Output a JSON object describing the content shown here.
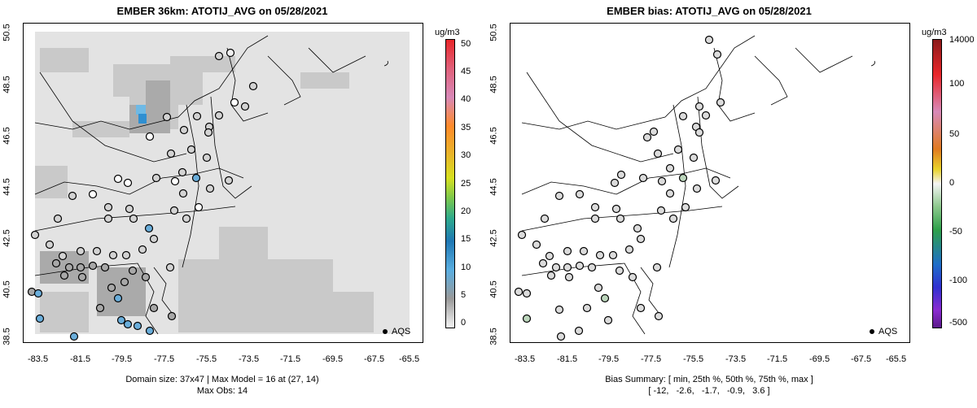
{
  "left_panel": {
    "title": "EMBER 36km: ATOTIJ_AVG on 05/28/2021",
    "colorbar_unit": "ug/m3",
    "colorbar_ticks": [
      "50",
      "45",
      "40",
      "35",
      "30",
      "25",
      "20",
      "15",
      "10",
      "5",
      "0"
    ],
    "legend_label": "AQS",
    "caption_line1": "Domain size: 37x47 | Max Model = 16 at (27, 14)",
    "caption_line2": "Max Obs: 14"
  },
  "right_panel": {
    "title": "EMBER bias: ATOTIJ_AVG on 05/28/2021",
    "colorbar_unit": "ug/m3",
    "colorbar_ticks": [
      "14000",
      "100",
      "50",
      "0",
      "-50",
      "-100",
      "-500"
    ],
    "legend_label": "AQS",
    "caption_line1": "Bias Summary: [ min, 25th %, 50th %, 75th %, max ]",
    "caption_line2": "[ -12,   -2.6,   -1.7,   -0.9,   3.6 ]"
  },
  "axes": {
    "y_ticks": [
      "50.5",
      "48.5",
      "46.5",
      "44.5",
      "42.5",
      "40.5",
      "38.5"
    ],
    "x_ticks": [
      "-83.5",
      "-81.5",
      "-79.5",
      "-77.5",
      "-75.5",
      "-73.5",
      "-71.5",
      "-69.5",
      "-67.5",
      "-65.5"
    ]
  },
  "colors": {
    "model_light": "#e3e3e3",
    "model_mid": "#c4c4c4",
    "model_dark": "#a8a8a8",
    "model_blue": "#5aaee0",
    "obs_default": "#d3d3d3",
    "obs_blue": "#6aaedb",
    "bias_zero": "#dcdcdc",
    "bias_green": "#bcd6bc"
  }
}
